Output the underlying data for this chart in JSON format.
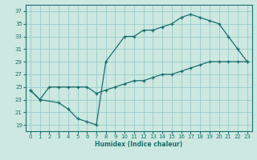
{
  "xlabel": "Humidex (Indice chaleur)",
  "xlim": [
    -0.5,
    23.5
  ],
  "ylim": [
    18,
    38
  ],
  "yticks": [
    19,
    21,
    23,
    25,
    27,
    29,
    31,
    33,
    35,
    37
  ],
  "xticks": [
    0,
    1,
    2,
    3,
    4,
    5,
    6,
    7,
    8,
    9,
    10,
    11,
    12,
    13,
    14,
    15,
    16,
    17,
    18,
    19,
    20,
    21,
    22,
    23
  ],
  "bg_color": "#cce8e0",
  "grid_color": "#99cccc",
  "line_color": "#1a6e6e",
  "line1_x": [
    0,
    1,
    3,
    4,
    5,
    6,
    7,
    8,
    10,
    11,
    12,
    13,
    14,
    15,
    16,
    17,
    18,
    19,
    20,
    21,
    22,
    23
  ],
  "line1_y": [
    24.5,
    23,
    22.5,
    21.5,
    20,
    19.5,
    19,
    29,
    33,
    33,
    34,
    34,
    34.5,
    35,
    36,
    36.5,
    36,
    35.5,
    35,
    33,
    31,
    29
  ],
  "line2_x": [
    0,
    1,
    2,
    3,
    4,
    5,
    6,
    7,
    8,
    9,
    10,
    11,
    12,
    13,
    14,
    15,
    16,
    17,
    18,
    19,
    20,
    21,
    22,
    23
  ],
  "line2_y": [
    24.5,
    23,
    25,
    25,
    25,
    25,
    25,
    24,
    24.5,
    25,
    25.5,
    26,
    26,
    26.5,
    27,
    27,
    27.5,
    28,
    28.5,
    29,
    29,
    29,
    29,
    29
  ]
}
